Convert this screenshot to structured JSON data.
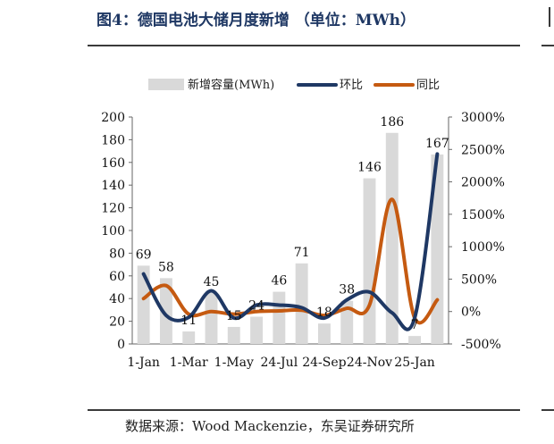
{
  "title": "图4：德国电池大储月度新增 （单位：MWh）",
  "source": "数据来源：Wood Mackenzie，东吴证券研究所",
  "chart_data": {
    "type": "bar",
    "categories": [
      "1-Jan",
      "",
      "1-Mar",
      "",
      "1-May",
      "",
      "24-Jul",
      "",
      "24-Sep",
      "",
      "24-Nov",
      "",
      "25-Jan",
      ""
    ],
    "series": [
      {
        "name": "新增容量(MWh)",
        "type": "bar",
        "axis": "left",
        "color": "#d9d9d9",
        "values": [
          69,
          58,
          11,
          45,
          15,
          24,
          46,
          71,
          18,
          38,
          146,
          186,
          7,
          167
        ]
      },
      {
        "name": "环比",
        "type": "line",
        "axis": "right",
        "color": "#1f3864",
        "values": [
          580,
          -60,
          -90,
          320,
          -100,
          100,
          100,
          60,
          -100,
          180,
          300,
          -20,
          -100,
          2430
        ]
      },
      {
        "name": "同比",
        "type": "line",
        "axis": "right",
        "color": "#c55a11",
        "values": [
          200,
          400,
          -40,
          0,
          -40,
          0,
          10,
          20,
          -60,
          50,
          100,
          1730,
          -100,
          180
        ]
      }
    ],
    "data_labels": [
      69,
      58,
      11,
      45,
      15,
      24,
      46,
      71,
      18,
      38,
      146,
      186,
      7,
      167
    ],
    "ylim_left": [
      0,
      200
    ],
    "yticks_left": [
      0,
      20,
      40,
      60,
      80,
      100,
      120,
      140,
      160,
      180,
      200
    ],
    "ylim_right": [
      -500,
      3000
    ],
    "yticks_right": [
      "-500%",
      "0%",
      "500%",
      "1000%",
      "1500%",
      "2000%",
      "2500%",
      "3000%"
    ],
    "yticks_right_values": [
      -500,
      0,
      500,
      1000,
      1500,
      2000,
      2500,
      3000
    ],
    "legend_position": "top",
    "grid": false
  }
}
